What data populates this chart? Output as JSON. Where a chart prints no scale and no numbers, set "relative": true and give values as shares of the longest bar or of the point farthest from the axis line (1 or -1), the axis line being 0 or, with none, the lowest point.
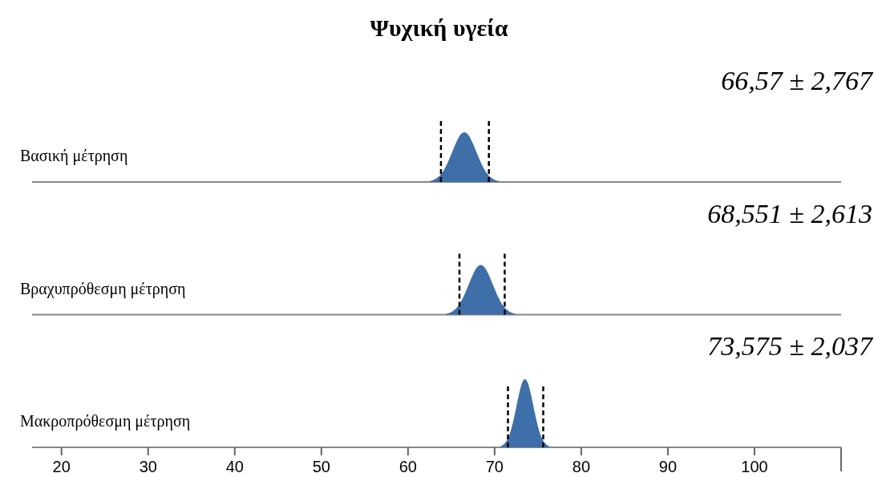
{
  "chart_data": [
    {
      "type": "area",
      "title": "Ψυχική υγεία",
      "ylabel": "Βασική μέτρηση",
      "annotations": [
        "66,57 ± 2,767"
      ],
      "relative": true,
      "xlim": [
        16.6,
        110
      ],
      "series": [
        {
          "color": "#3f6fa8",
          "x": [
            62.5,
            63,
            63.5,
            64,
            64.5,
            65,
            65.5,
            66,
            66.5,
            67,
            67.5,
            68,
            68.5,
            69,
            69.5,
            70,
            70.5
          ],
          "values": [
            0.017,
            0.044,
            0.1,
            0.2,
            0.36,
            0.56,
            0.77,
            0.94,
            1,
            0.94,
            0.77,
            0.56,
            0.36,
            0.2,
            0.1,
            0.044,
            0.017
          ]
        }
      ],
      "ref_lines": [
        {
          "axis": "x",
          "value": 63.803,
          "color": "#000000",
          "line_style": "dashed"
        },
        {
          "axis": "x",
          "value": 69.337,
          "color": "#000000",
          "line_style": "dashed"
        }
      ]
    },
    {
      "type": "area",
      "ylabel": "Βραχυπρόθεσμη μέτρηση",
      "annotations": [
        "68,551 ± 2,613"
      ],
      "relative": true,
      "xlim": [
        16.6,
        110
      ],
      "series": [
        {
          "color": "#3f6fa8",
          "x": [
            64.4,
            64.9,
            65.4,
            65.9,
            66.4,
            66.9,
            67.4,
            67.9,
            68.4,
            68.9,
            69.4,
            69.9,
            70.4,
            70.9,
            71.4,
            71.9,
            72.4
          ],
          "values": [
            0.017,
            0.044,
            0.1,
            0.2,
            0.36,
            0.56,
            0.77,
            0.94,
            1,
            0.94,
            0.77,
            0.56,
            0.36,
            0.2,
            0.1,
            0.044,
            0.017
          ]
        }
      ],
      "ref_lines": [
        {
          "axis": "x",
          "value": 65.938,
          "color": "#000000",
          "line_style": "dashed"
        },
        {
          "axis": "x",
          "value": 71.164,
          "color": "#000000",
          "line_style": "dashed"
        }
      ]
    },
    {
      "type": "area",
      "ylabel": "Μακροπρόθεσμη μέτρηση",
      "annotations": [
        "73,575 ± 2,037"
      ],
      "relative": true,
      "xlim": [
        16.6,
        110
      ],
      "xticks": [
        20,
        30,
        40,
        50,
        60,
        70,
        80,
        90,
        100
      ],
      "series": [
        {
          "color": "#3f6fa8",
          "x": [
            70.7,
            71.05,
            71.4,
            71.75,
            72.1,
            72.45,
            72.8,
            73.15,
            73.5,
            73.85,
            74.2,
            74.55,
            74.9,
            75.25,
            75.6,
            75.95,
            76.3
          ],
          "values": [
            0.017,
            0.044,
            0.1,
            0.2,
            0.36,
            0.56,
            0.77,
            0.94,
            1,
            0.94,
            0.77,
            0.56,
            0.36,
            0.2,
            0.1,
            0.044,
            0.017
          ]
        }
      ],
      "ref_lines": [
        {
          "axis": "x",
          "value": 71.538,
          "color": "#000000",
          "line_style": "dashed"
        },
        {
          "axis": "x",
          "value": 75.612,
          "color": "#000000",
          "line_style": "dashed"
        }
      ]
    }
  ]
}
